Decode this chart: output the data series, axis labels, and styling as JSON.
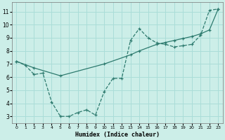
{
  "title": "",
  "xlabel": "Humidex (Indice chaleur)",
  "bg_color": "#cceee8",
  "grid_color": "#aaddd8",
  "line_color": "#2d7a6e",
  "xlim": [
    -0.5,
    23.5
  ],
  "ylim": [
    2.5,
    11.7
  ],
  "xticks": [
    0,
    1,
    2,
    3,
    4,
    5,
    6,
    7,
    8,
    9,
    10,
    11,
    12,
    13,
    14,
    15,
    16,
    17,
    18,
    19,
    20,
    21,
    22,
    23
  ],
  "yticks": [
    3,
    4,
    5,
    6,
    7,
    8,
    9,
    10,
    11
  ],
  "line1_x": [
    0,
    1,
    2,
    3,
    4,
    5,
    6,
    7,
    8,
    9,
    10,
    11,
    12,
    13,
    14,
    15,
    16,
    17,
    18,
    19,
    20,
    21,
    22,
    23
  ],
  "line1_y": [
    7.2,
    6.9,
    6.2,
    6.3,
    4.1,
    3.0,
    3.0,
    3.3,
    3.5,
    3.1,
    4.9,
    5.9,
    5.9,
    8.8,
    9.7,
    9.0,
    8.6,
    8.5,
    8.3,
    8.4,
    8.5,
    9.2,
    11.1,
    11.2
  ],
  "line2_x": [
    0,
    2,
    5,
    10,
    13,
    14,
    16,
    17,
    18,
    19,
    20,
    21,
    22,
    23
  ],
  "line2_y": [
    7.2,
    6.7,
    6.1,
    7.0,
    7.7,
    8.0,
    8.5,
    8.65,
    8.8,
    8.95,
    9.1,
    9.3,
    9.6,
    11.2
  ]
}
